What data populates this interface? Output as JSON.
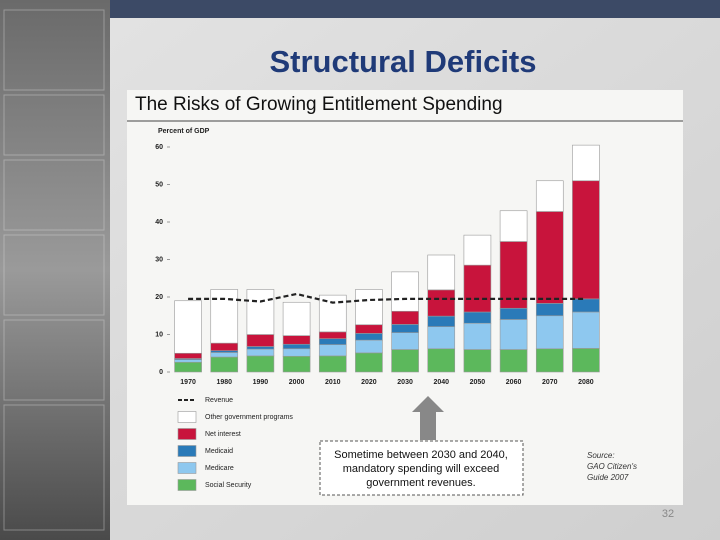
{
  "slide": {
    "title": "Structural Deficits",
    "page_number": "32",
    "callout": [
      "Sometime between 2030 and 2040,",
      "mandatory spending will exceed",
      "government revenues."
    ],
    "source": [
      "Source:",
      "GAO Citizen's",
      "Guide 2007"
    ]
  },
  "chart_data": {
    "type": "bar",
    "stacked": true,
    "title": "The Risks of Growing Entitlement Spending",
    "ylabel": "Percent of GDP",
    "categories": [
      "1970",
      "1980",
      "1990",
      "2000",
      "2010",
      "2020",
      "2030",
      "2040",
      "2050",
      "2060",
      "2070",
      "2080"
    ],
    "ylim": [
      0,
      60
    ],
    "yticks": [
      0,
      10,
      20,
      30,
      40,
      50,
      60
    ],
    "series": [
      {
        "name": "Social Security",
        "color": "#5cb85c",
        "values": [
          2.6,
          4.0,
          4.3,
          4.2,
          4.3,
          5.1,
          6.0,
          6.2,
          6.0,
          6.0,
          6.2,
          6.3
        ]
      },
      {
        "name": "Medicare",
        "color": "#8ec8ef",
        "values": [
          0.7,
          1.2,
          1.8,
          2.0,
          3.0,
          3.4,
          4.5,
          5.9,
          7.0,
          8.0,
          8.8,
          9.7
        ]
      },
      {
        "name": "Medicaid",
        "color": "#2a7ab8",
        "values": [
          0.3,
          0.5,
          0.7,
          1.2,
          1.6,
          1.8,
          2.2,
          2.8,
          3.0,
          3.0,
          3.3,
          3.5
        ]
      },
      {
        "name": "Net interest",
        "color": "#c8143c",
        "values": [
          1.4,
          2.0,
          3.2,
          2.3,
          1.8,
          2.3,
          3.5,
          7.0,
          12.5,
          17.8,
          24.5,
          31.5
        ]
      },
      {
        "name": "Other government programs",
        "color": "#ffffff",
        "values": [
          14.0,
          14.3,
          12.0,
          8.9,
          9.8,
          9.4,
          10.5,
          9.3,
          8.0,
          8.2,
          8.2,
          9.5
        ]
      },
      {
        "name": "Revenue",
        "type": "line",
        "color": "#222222",
        "values": [
          19.5,
          19.5,
          18.8,
          20.8,
          18.5,
          19.2,
          19.5,
          19.5,
          19.5,
          19.5,
          19.5,
          19.5
        ]
      }
    ]
  }
}
